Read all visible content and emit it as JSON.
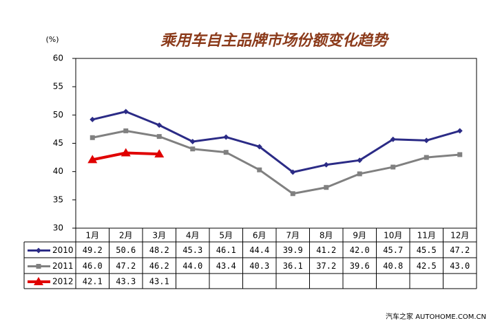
{
  "chart_data": {
    "type": "line",
    "title": "乘用车自主品牌市场份额变化趋势",
    "y_axis_label": "(%)",
    "watermark": "汽车之家 AUTOHOME.COM.CN",
    "categories": [
      "1月",
      "2月",
      "3月",
      "4月",
      "5月",
      "6月",
      "7月",
      "8月",
      "9月",
      "10月",
      "11月",
      "12月"
    ],
    "ylim": [
      30,
      60
    ],
    "yticks": [
      30,
      35,
      40,
      45,
      50,
      55,
      60
    ],
    "grid": false,
    "series": [
      {
        "name": "2010",
        "color": "#2b2b86",
        "marker": "diamond",
        "values": [
          49.2,
          50.6,
          48.2,
          45.3,
          46.1,
          44.4,
          39.9,
          41.2,
          42.0,
          45.7,
          45.5,
          47.2
        ],
        "value_labels": [
          "49.2",
          "50.6",
          "48.2",
          "45.3",
          "46.1",
          "44.4",
          "39.9",
          "41.2",
          "42.0",
          "45.7",
          "45.5",
          "47.2"
        ]
      },
      {
        "name": "2011",
        "color": "#808080",
        "marker": "square",
        "values": [
          46.0,
          47.2,
          46.2,
          44.0,
          43.4,
          40.3,
          36.1,
          37.2,
          39.6,
          40.8,
          42.5,
          43.0
        ],
        "value_labels": [
          "46.0",
          "47.2",
          "46.2",
          "44.0",
          "43.4",
          "40.3",
          "36.1",
          "37.2",
          "39.6",
          "40.8",
          "42.5",
          "43.0"
        ]
      },
      {
        "name": "2012",
        "color": "#e00000",
        "marker": "triangle",
        "values": [
          42.1,
          43.3,
          43.1,
          null,
          null,
          null,
          null,
          null,
          null,
          null,
          null,
          null
        ],
        "value_labels": [
          "42.1",
          "43.3",
          "43.1",
          null,
          null,
          null,
          null,
          null,
          null,
          null,
          null,
          null
        ]
      }
    ]
  }
}
